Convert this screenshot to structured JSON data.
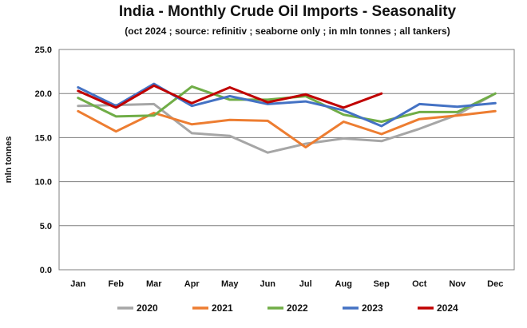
{
  "chart_data": {
    "type": "line",
    "title": "India - Monthly Crude Oil Imports - Seasonality",
    "subtitle": "(oct 2024 ; source: refinitiv ; seaborne only ; in mln tonnes ; all tankers)",
    "xlabel": "",
    "ylabel": "mln tonnes",
    "ylim": [
      0,
      25
    ],
    "yticks": [
      "0.0",
      "5.0",
      "10.0",
      "15.0",
      "20.0",
      "25.0"
    ],
    "grid": true,
    "legend_position": "bottom",
    "categories": [
      "Jan",
      "Feb",
      "Mar",
      "Apr",
      "May",
      "Jun",
      "Jul",
      "Aug",
      "Sep",
      "Oct",
      "Nov",
      "Dec"
    ],
    "series": [
      {
        "name": "2020",
        "color": "#a6a6a6",
        "values": [
          18.6,
          18.7,
          18.8,
          15.5,
          15.2,
          13.3,
          14.3,
          14.9,
          14.6,
          16.0,
          17.6,
          20.0
        ]
      },
      {
        "name": "2021",
        "color": "#ed7d31",
        "values": [
          18.0,
          15.7,
          17.8,
          16.5,
          17.0,
          16.9,
          13.9,
          16.8,
          15.4,
          17.1,
          17.5,
          18.0
        ]
      },
      {
        "name": "2022",
        "color": "#70ad47",
        "values": [
          19.5,
          17.4,
          17.5,
          20.8,
          19.3,
          19.3,
          19.7,
          17.6,
          16.8,
          17.9,
          17.9,
          20.0
        ]
      },
      {
        "name": "2023",
        "color": "#4472c4",
        "values": [
          20.7,
          18.6,
          21.1,
          18.6,
          19.7,
          18.8,
          19.1,
          18.1,
          16.3,
          18.8,
          18.5,
          18.9
        ]
      },
      {
        "name": "2024",
        "color": "#c00000",
        "values": [
          20.3,
          18.4,
          20.9,
          18.9,
          20.7,
          19.0,
          19.9,
          18.4,
          20.0,
          null,
          null,
          null
        ]
      }
    ]
  }
}
